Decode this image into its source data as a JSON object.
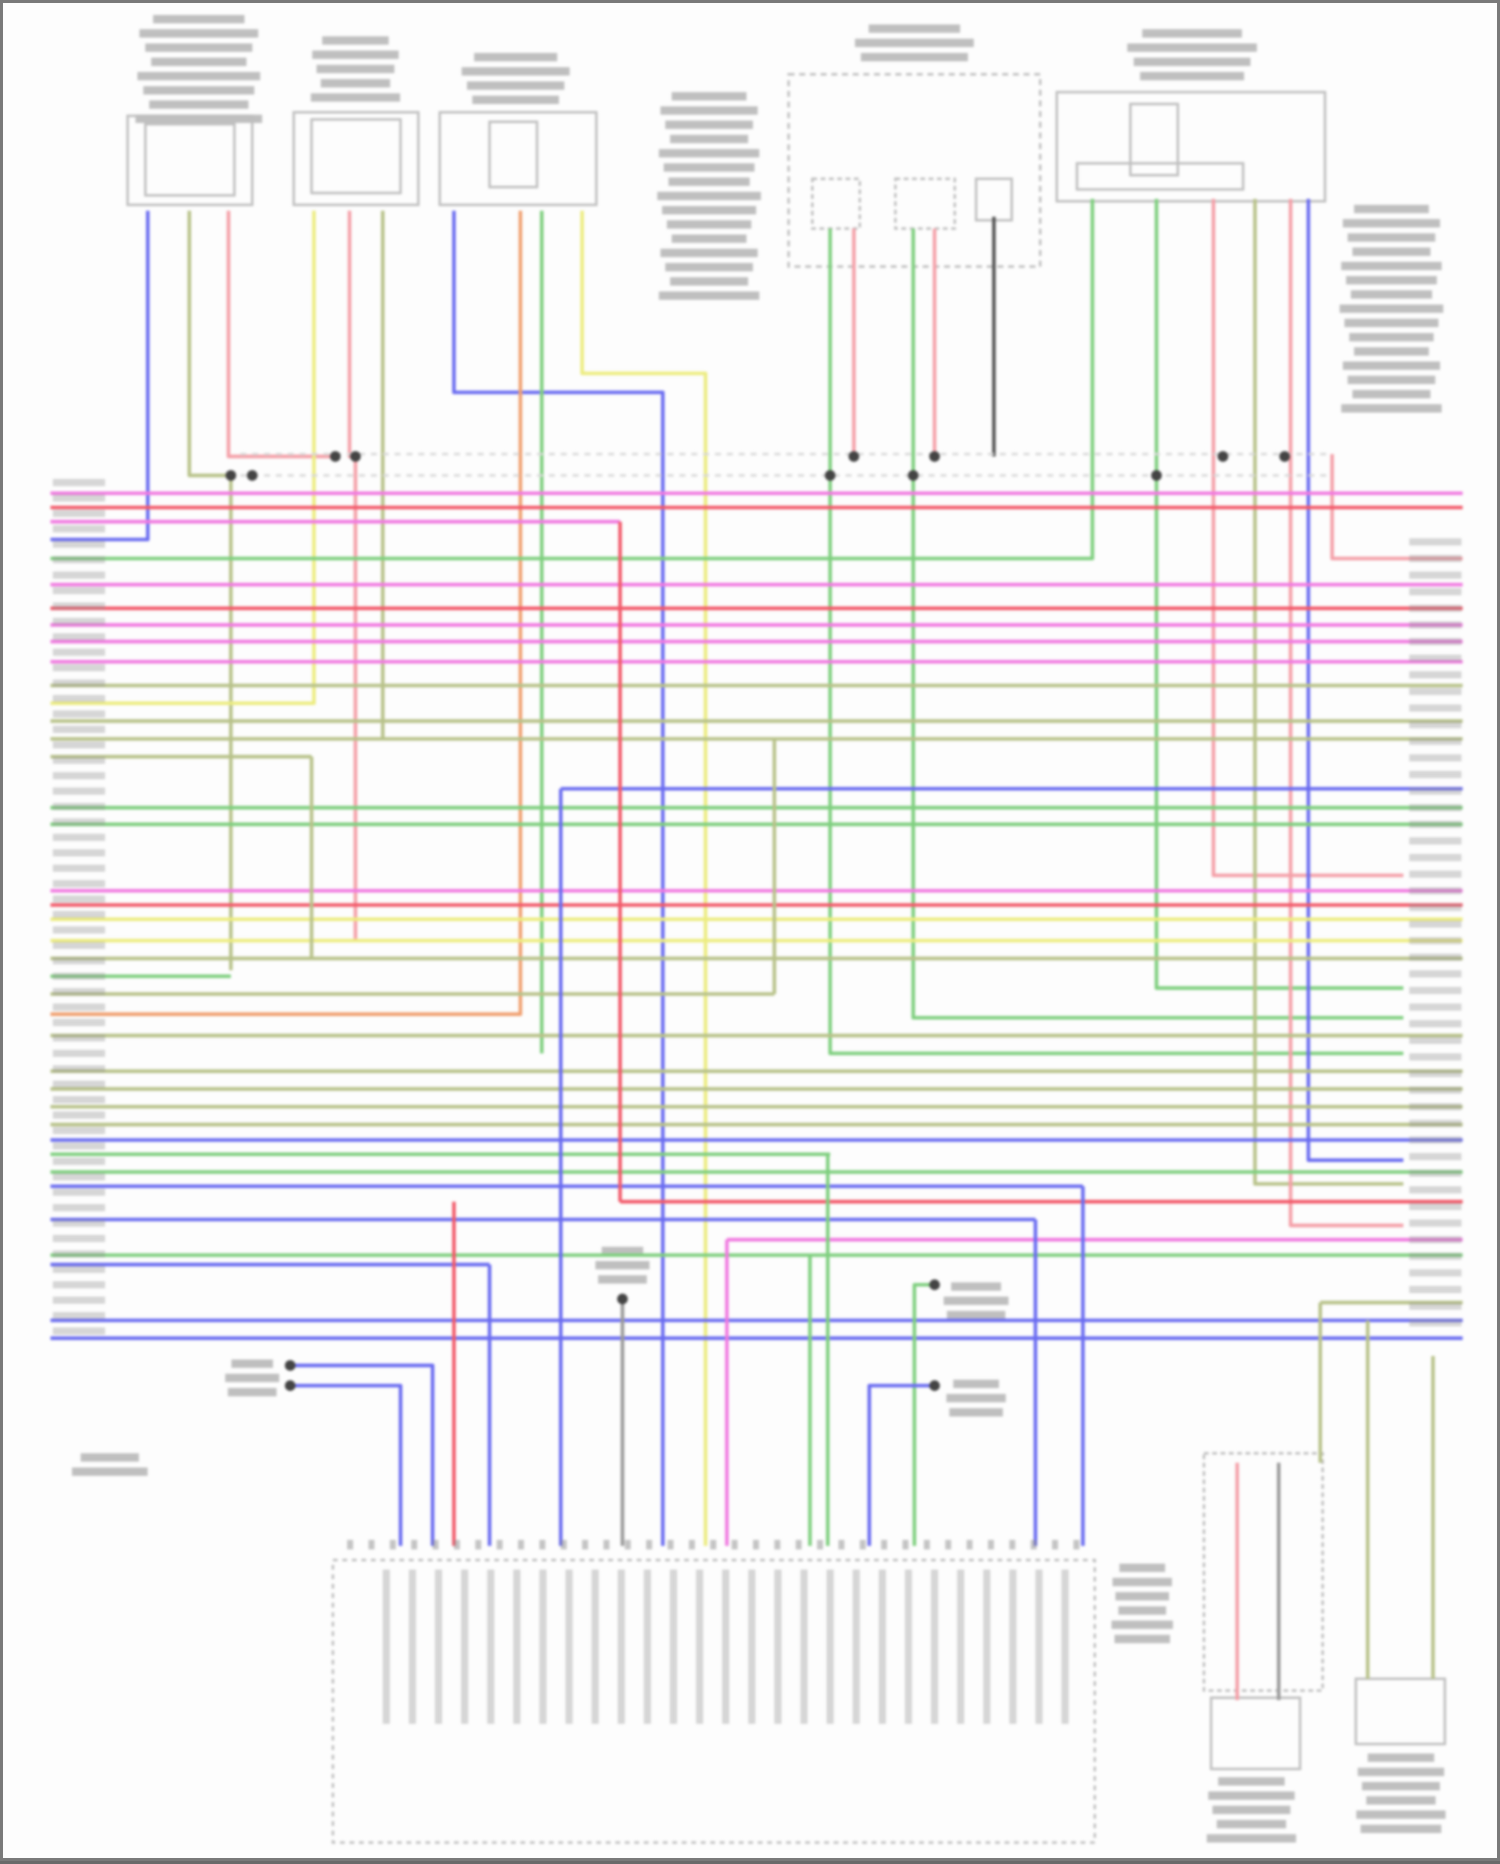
{
  "diagram": {
    "type": "wiring-diagram",
    "text_legible": false,
    "wire_colors": {
      "pink": "#f07ae0",
      "red": "#f25a6a",
      "blue": "#6a6cf0",
      "green": "#7fcf7f",
      "olive": "#b8c28a",
      "yellow": "#ecec80",
      "orange": "#f0a070",
      "gray": "#9a9a9a",
      "lightred": "#f4a0a8",
      "dark": "#555555"
    },
    "component_outline_color": "#bdbdbd",
    "label_color": "#8c8c8c"
  }
}
